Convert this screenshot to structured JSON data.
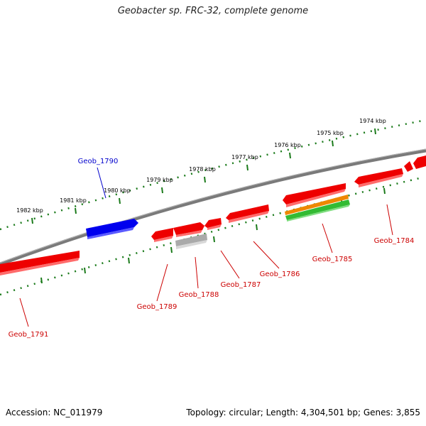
{
  "title": "Geobacter sp. FRC-32, complete genome",
  "footer": {
    "accession": "Accession: NC_011979",
    "summary": "Topology: circular; Length: 4,304,501 bp; Genes: 3,855"
  },
  "ticks": [
    "1974 kbp",
    "1975 kbp",
    "1976 kbp",
    "1977 kbp",
    "1978 kbp",
    "1979 kbp",
    "1980 kbp",
    "1981 kbp",
    "1982 kbp"
  ],
  "genes": [
    {
      "label": "Geob_1784"
    },
    {
      "label": "Geob_1785"
    },
    {
      "label": "Geob_1786"
    },
    {
      "label": "Geob_1787"
    },
    {
      "label": "Geob_1788"
    },
    {
      "label": "Geob_1789"
    },
    {
      "label": "Geob_1790"
    },
    {
      "label": "Geob_1791"
    }
  ],
  "colors": {
    "backbone": "#808080",
    "tick": "#1a7a1a",
    "gene_red": "#ee0000",
    "gene_blue": "#0000ee",
    "gene_gray": "#aaaaaa",
    "gene_orange": "#ee8800",
    "gene_green": "#33bb33",
    "label_red": "#cc0000",
    "label_blue": "#0000cc"
  }
}
